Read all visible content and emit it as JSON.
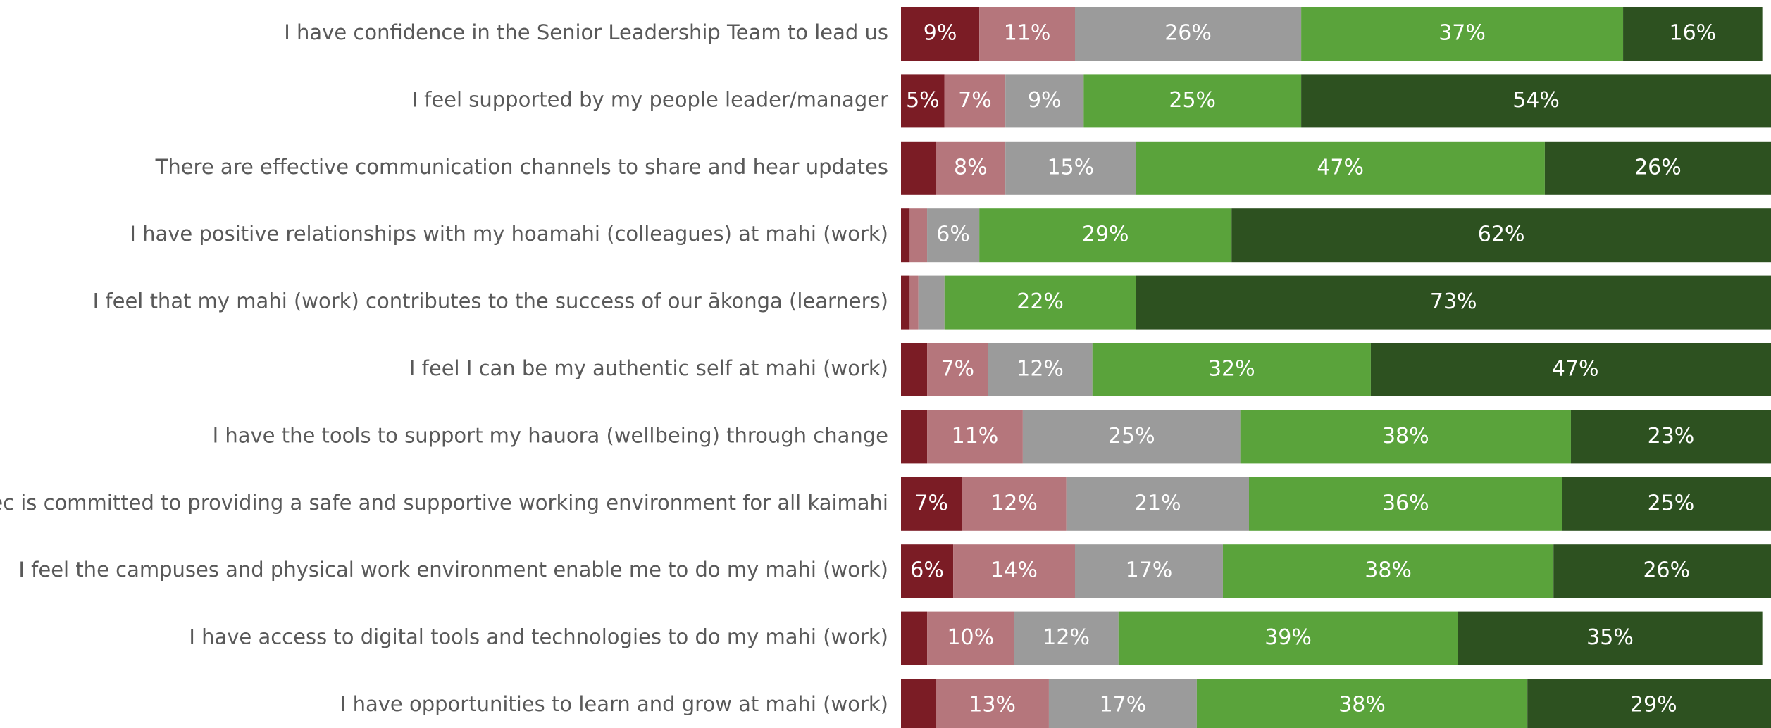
{
  "chart_data": {
    "type": "stacked_bar_horizontal",
    "categories": [
      "I have confidence in the Senior Leadership Team to lead us",
      "I feel supported by my people leader/manager",
      "There are effective communication channels to share and hear updates",
      "I have positive relationships with my hoamahi (colleagues) at mahi (work)",
      "I feel that my mahi (work) contributes to the success of our ākonga (learners)",
      "I feel I can be my authentic self at mahi (work)",
      "I have the tools to support my hauora (wellbeing) through change",
      "MIT/Unitec is committed to providing a safe and supportive working environment for all kaimahi",
      "I feel the campuses and physical work environment enable me to do my mahi (work)",
      "I have access to digital tools and technologies to do my mahi (work)",
      "I have opportunities to learn and grow at mahi (work)"
    ],
    "xlim": [
      0,
      100
    ],
    "series": [
      {
        "color": "#7b1c25",
        "values": [
          9,
          5,
          4,
          1,
          1,
          3,
          3,
          7,
          6,
          3,
          4
        ],
        "value_labels": [
          "9%",
          "5%",
          null,
          null,
          null,
          null,
          null,
          "7%",
          "6%",
          null,
          null
        ]
      },
      {
        "color": "#b5767c",
        "values": [
          11,
          7,
          8,
          2,
          1,
          7,
          11,
          12,
          14,
          10,
          13
        ],
        "value_labels": [
          "11%",
          "7%",
          "8%",
          null,
          null,
          "7%",
          "11%",
          "12%",
          "14%",
          "10%",
          "13%"
        ]
      },
      {
        "color": "#9b9b9b",
        "values": [
          26,
          9,
          15,
          6,
          3,
          12,
          25,
          21,
          17,
          12,
          17
        ],
        "value_labels": [
          "26%",
          "9%",
          "15%",
          "6%",
          null,
          "12%",
          "25%",
          "21%",
          "17%",
          "12%",
          "17%"
        ]
      },
      {
        "color": "#5aa33b",
        "values": [
          37,
          25,
          47,
          29,
          22,
          32,
          38,
          36,
          38,
          39,
          38
        ],
        "value_labels": [
          "37%",
          "25%",
          "47%",
          "29%",
          "22%",
          "32%",
          "38%",
          "36%",
          "38%",
          "39%",
          "38%"
        ]
      },
      {
        "color": "#2d5120",
        "values": [
          16,
          54,
          26,
          62,
          73,
          47,
          23,
          25,
          26,
          35,
          29
        ],
        "value_labels": [
          "16%",
          "54%",
          "26%",
          "62%",
          "73%",
          "47%",
          "23%",
          "25%",
          "26%",
          "35%",
          "29%"
        ]
      }
    ]
  }
}
